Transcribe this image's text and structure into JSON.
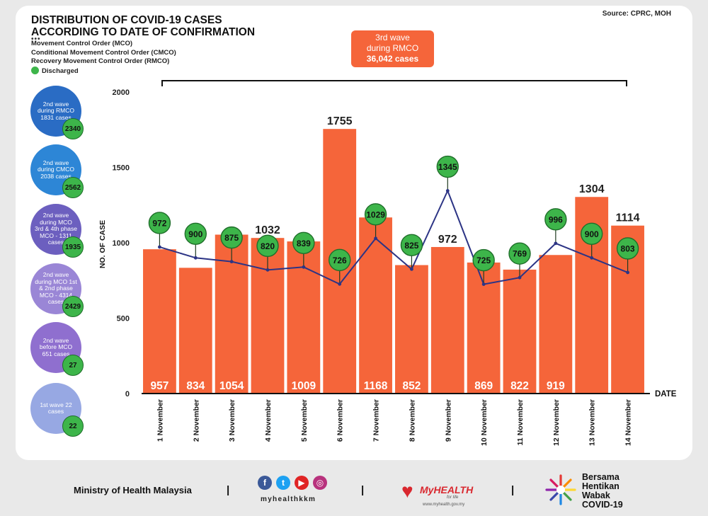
{
  "header": {
    "title_line1": "DISTRIBUTION OF COVID-19 CASES",
    "title_line2": "ACCORDING TO DATE OF CONFIRMATION",
    "source": "Source: CPRC, MOH",
    "dots": "•••"
  },
  "legend": {
    "mco": "Movement Control Order (MCO)",
    "cmco": "Conditional Movement Control Order (CMCO)",
    "rmco": "Recovery Movement Control Order (RMCO)",
    "discharged": "Discharged"
  },
  "wave3": {
    "line1": "3rd wave",
    "line2": "during RMCO",
    "line3": "36,042 cases"
  },
  "side": [
    {
      "label": "2nd wave during RMCO 1831 cases",
      "discharged": "2340",
      "color": "#2a6cc4"
    },
    {
      "label": "2nd wave during CMCO 2038 cases",
      "discharged": "2562",
      "color": "#2d86d6"
    },
    {
      "label": "2nd wave during MCO 3rd & 4th phase MCO - 1311 cases",
      "discharged": "1935",
      "color": "#6c5fbf"
    },
    {
      "label": "2nd wave during MCO 1st & 2nd phase MCO - 4314 cases",
      "discharged": "2429",
      "color": "#9a86d6"
    },
    {
      "label": "2nd wave before MCO 651 cases",
      "discharged": "27",
      "color": "#8f6fcf"
    },
    {
      "label": "1st wave 22 cases",
      "discharged": "22",
      "color": "#97a8e3"
    }
  ],
  "chart_data": {
    "type": "bar",
    "title": "DISTRIBUTION OF COVID-19 CASES ACCORDING TO DATE OF CONFIRMATION",
    "ylabel": "NO. OF CASE",
    "xlabel": "DATE",
    "ylim": [
      0,
      2000
    ],
    "yticks": [
      0,
      500,
      1000,
      1500,
      2000
    ],
    "categories": [
      "1 November",
      "2 November",
      "3 November",
      "4 November",
      "5 November",
      "6 November",
      "7 November",
      "8 November",
      "9 November",
      "10 November",
      "11 November",
      "12 November",
      "13 November",
      "14 November"
    ],
    "series": [
      {
        "name": "Cases",
        "type": "bar",
        "color": "#f5653a",
        "values": [
          957,
          834,
          1054,
          1032,
          1009,
          1755,
          1168,
          852,
          972,
          869,
          822,
          919,
          1304,
          1114
        ],
        "label_position": [
          "inside",
          "inside",
          "inside",
          "above",
          "inside",
          "above",
          "inside",
          "inside",
          "above",
          "inside",
          "inside",
          "inside",
          "above",
          "above"
        ]
      },
      {
        "name": "Discharged",
        "type": "line",
        "color": "#2c3485",
        "values": [
          972,
          900,
          875,
          820,
          839,
          726,
          1029,
          825,
          1345,
          725,
          769,
          996,
          900,
          803
        ]
      }
    ]
  },
  "footer": {
    "ministry": "Ministry of Health Malaysia",
    "separator": "|",
    "handle": "myhealthkkm",
    "myhealth": "MyHEALTH",
    "myhealth_tag": "for life",
    "myhealth_url": "www.myhealth.gov.my",
    "bersama_line1": "Bersama",
    "bersama_line2": "Hentikan",
    "bersama_line3": "Wabak",
    "bersama_line4": "COVID-19"
  },
  "colors": {
    "bar": "#f5653a",
    "line": "#2c3485",
    "discharged": "#3db54a"
  }
}
